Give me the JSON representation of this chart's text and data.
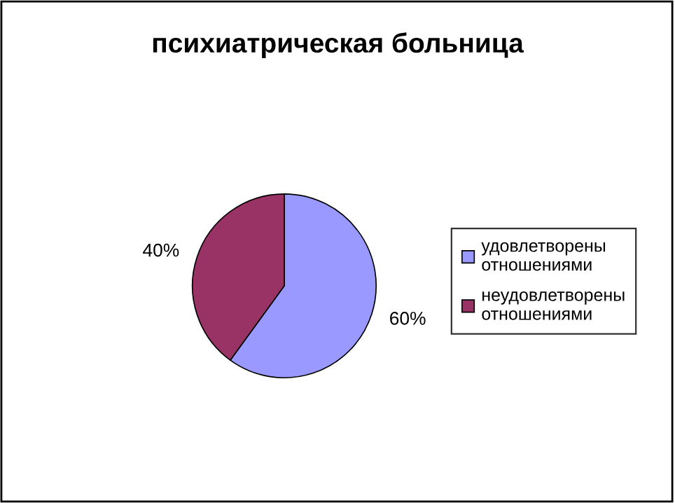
{
  "chart_data": {
    "type": "pie",
    "title": "психиатрическая больница",
    "categories": [
      "удовлетворены\nотношениями",
      "неудовлетворены\nотношениями"
    ],
    "values": [
      60,
      40
    ],
    "colors": [
      "#9999ff",
      "#993366"
    ],
    "value_labels": [
      "60%",
      "40%"
    ],
    "legend": "right"
  }
}
